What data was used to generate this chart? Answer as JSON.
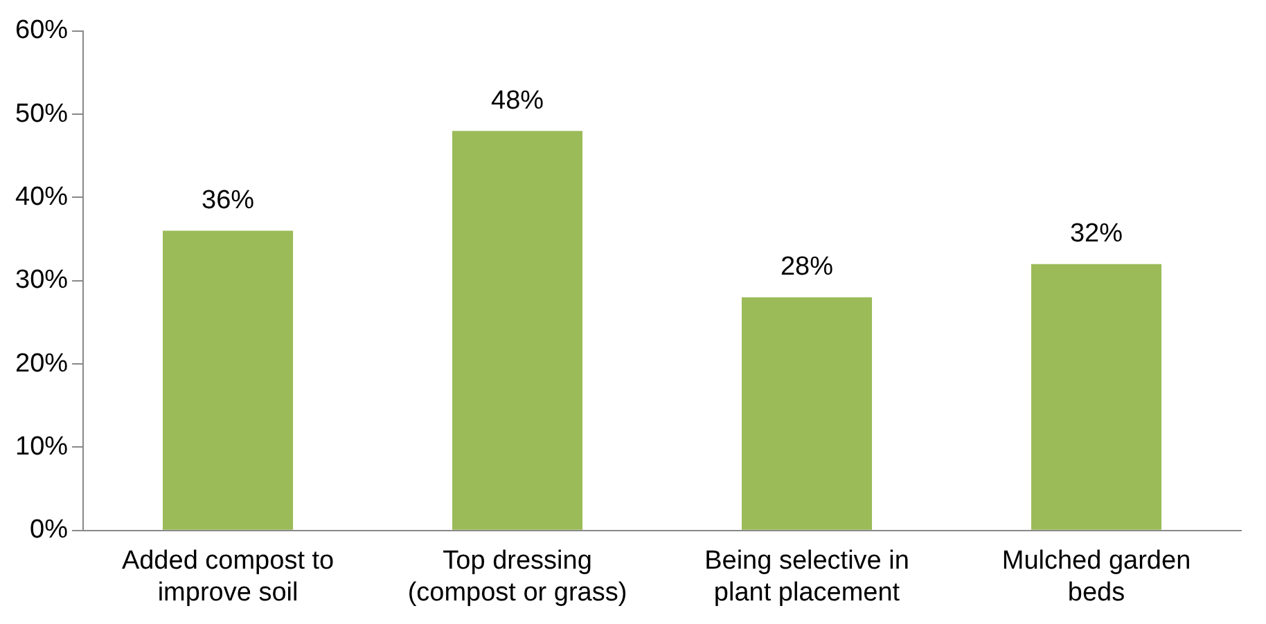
{
  "chart_data": {
    "type": "bar",
    "categories": [
      "Added compost to improve soil",
      "Top dressing (compost or grass)",
      "Being selective in plant placement",
      "Mulched garden beds"
    ],
    "values": [
      36,
      48,
      28,
      32
    ],
    "value_labels": [
      "36%",
      "48%",
      "28%",
      "32%"
    ],
    "color": "#9bbb59",
    "ylim": [
      0,
      60
    ],
    "yticks": [
      {
        "value": 0,
        "label": "0%"
      },
      {
        "value": 10,
        "label": "10%"
      },
      {
        "value": 20,
        "label": "20%"
      },
      {
        "value": 30,
        "label": "30%"
      },
      {
        "value": 40,
        "label": "40%"
      },
      {
        "value": 50,
        "label": "50%"
      },
      {
        "value": 60,
        "label": "60%"
      }
    ],
    "grid": false,
    "legend": false
  }
}
